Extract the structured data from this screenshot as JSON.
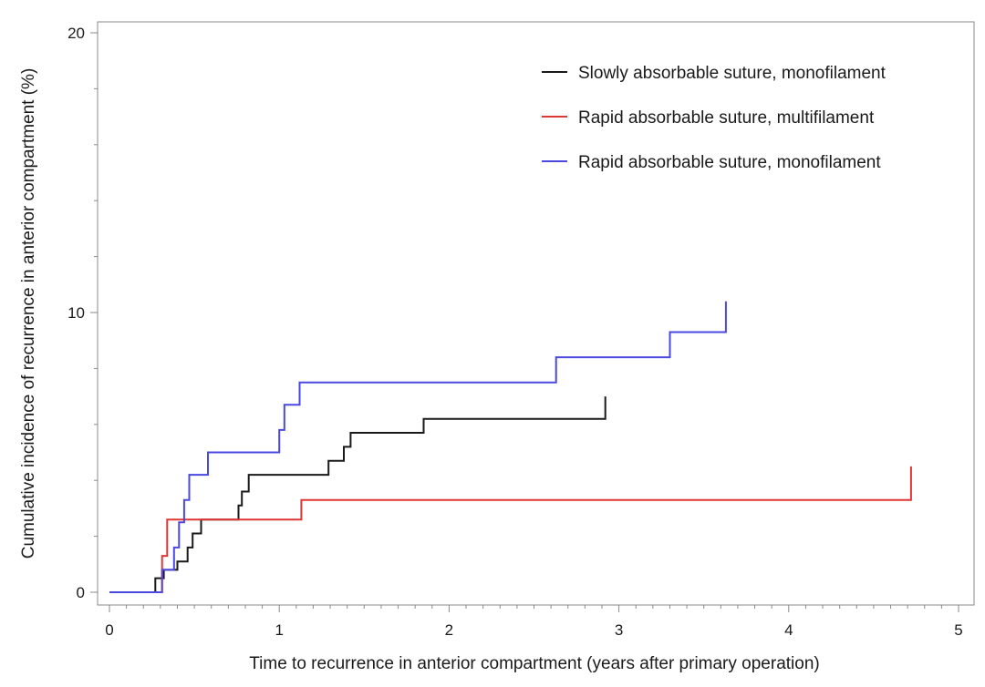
{
  "chart_data": {
    "type": "line",
    "title": "",
    "xlabel": "Time to recurrence in anterior compartment (years after primary operation)",
    "ylabel": "Cumulative incidence of recurrence in anterior compartment (%)",
    "xlim": [
      0,
      5
    ],
    "ylim": [
      0,
      20
    ],
    "x_ticks": [
      0,
      1,
      2,
      3,
      4,
      5
    ],
    "x_tick_labels": [
      "0",
      "1",
      "2",
      "3",
      "4",
      "5"
    ],
    "y_ticks": [
      0,
      10,
      20
    ],
    "y_tick_labels": [
      "0",
      "10",
      "20"
    ],
    "grid": false,
    "legend_position": "top-right",
    "step": true,
    "series": [
      {
        "name": "Slowly absorbable suture, monofilament",
        "color": "#1a1a1a",
        "points": [
          [
            0,
            0
          ],
          [
            0.27,
            0
          ],
          [
            0.27,
            0.5
          ],
          [
            0.32,
            0.5
          ],
          [
            0.32,
            0.8
          ],
          [
            0.4,
            0.8
          ],
          [
            0.4,
            1.1
          ],
          [
            0.46,
            1.1
          ],
          [
            0.46,
            1.6
          ],
          [
            0.49,
            1.6
          ],
          [
            0.49,
            2.1
          ],
          [
            0.54,
            2.1
          ],
          [
            0.54,
            2.6
          ],
          [
            0.76,
            2.6
          ],
          [
            0.76,
            3.1
          ],
          [
            0.78,
            3.1
          ],
          [
            0.78,
            3.6
          ],
          [
            0.82,
            3.6
          ],
          [
            0.82,
            4.2
          ],
          [
            1.29,
            4.2
          ],
          [
            1.29,
            4.7
          ],
          [
            1.38,
            4.7
          ],
          [
            1.38,
            5.2
          ],
          [
            1.42,
            5.2
          ],
          [
            1.42,
            5.7
          ],
          [
            1.85,
            5.7
          ],
          [
            1.85,
            6.2
          ],
          [
            2.92,
            6.2
          ],
          [
            2.92,
            7.0
          ]
        ]
      },
      {
        "name": "Rapid absorbable suture, multifilament",
        "color": "#e03535",
        "points": [
          [
            0,
            0
          ],
          [
            0.31,
            0
          ],
          [
            0.31,
            1.3
          ],
          [
            0.34,
            1.3
          ],
          [
            0.34,
            2.6
          ],
          [
            1.13,
            2.6
          ],
          [
            1.13,
            3.3
          ],
          [
            4.72,
            3.3
          ],
          [
            4.72,
            4.5
          ]
        ]
      },
      {
        "name": "Rapid absorbable suture, monofilament",
        "color": "#4a48e0",
        "points": [
          [
            0,
            0
          ],
          [
            0.31,
            0
          ],
          [
            0.31,
            0.8
          ],
          [
            0.38,
            0.8
          ],
          [
            0.38,
            1.6
          ],
          [
            0.41,
            1.6
          ],
          [
            0.41,
            2.5
          ],
          [
            0.44,
            2.5
          ],
          [
            0.44,
            3.3
          ],
          [
            0.47,
            3.3
          ],
          [
            0.47,
            4.2
          ],
          [
            0.58,
            4.2
          ],
          [
            0.58,
            5.0
          ],
          [
            1.0,
            5.0
          ],
          [
            1.0,
            5.8
          ],
          [
            1.03,
            5.8
          ],
          [
            1.03,
            6.7
          ],
          [
            1.12,
            6.7
          ],
          [
            1.12,
            7.5
          ],
          [
            2.63,
            7.5
          ],
          [
            2.63,
            8.4
          ],
          [
            3.3,
            8.4
          ],
          [
            3.3,
            9.3
          ],
          [
            3.63,
            9.3
          ],
          [
            3.63,
            10.4
          ]
        ]
      }
    ]
  }
}
